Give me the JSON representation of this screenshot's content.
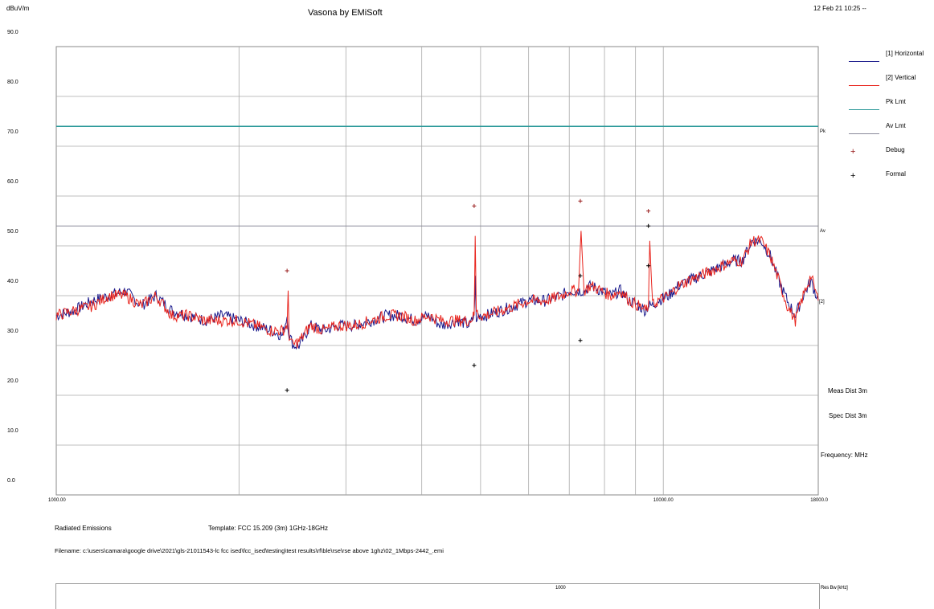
{
  "header": {
    "y_unit": "dBuV/m",
    "app_title": "Vasona by EMiSoft",
    "datetime": "12 Feb 21 10:25 --"
  },
  "chart_data": {
    "type": "line",
    "x_scale": "log",
    "xlim": [
      1000,
      18000
    ],
    "ylim": [
      0,
      90
    ],
    "y_ticks": [
      "90.0",
      "80.0",
      "70.0",
      "60.0",
      "50.0",
      "40.0",
      "30.0",
      "20.0",
      "10.0",
      "0.0"
    ],
    "x_tick_labels": [
      "1000.00",
      "10000.00",
      "18000.0"
    ],
    "grid": true,
    "legend_placement": "right",
    "limits": [
      {
        "name": "Pk Lmt",
        "value": 74,
        "tag": "Pk",
        "color": "#2e9a9a"
      },
      {
        "name": "Av Lmt",
        "value": 54,
        "tag": "Av",
        "color": "#8a8a9a"
      }
    ],
    "series": [
      {
        "name": "[1] Horizontal",
        "color": "#1a1a8c",
        "x": [
          1000,
          1070,
          1150,
          1220,
          1300,
          1380,
          1460,
          1550,
          1650,
          1760,
          1880,
          2000,
          2130,
          2260,
          2360,
          2400,
          2420,
          2460,
          2520,
          2620,
          2760,
          2920,
          3100,
          3300,
          3500,
          3700,
          3900,
          4100,
          4300,
          4600,
          4800,
          4880,
          4900,
          4920,
          4960,
          5100,
          5400,
          5700,
          6000,
          6400,
          6800,
          7000,
          7250,
          7320,
          7400,
          7600,
          7900,
          8200,
          8500,
          8800,
          9100,
          9350,
          9450,
          9500,
          9600,
          9800,
          10200,
          10600,
          11000,
          11500,
          12000,
          12500,
          13000,
          13500,
          14000,
          14500,
          15000,
          15500,
          16000,
          16500,
          17000,
          17500,
          18000
        ],
        "y": [
          36,
          37,
          39,
          40,
          41,
          38,
          40,
          37,
          36,
          35,
          36,
          35,
          34,
          33,
          32,
          36,
          32,
          30,
          30,
          34,
          33,
          34,
          34,
          35,
          36,
          36,
          35,
          36,
          34,
          35,
          34,
          36,
          44,
          34,
          36,
          36,
          37,
          38,
          39,
          39,
          40,
          41,
          41,
          41,
          41,
          42,
          41,
          40,
          41,
          39,
          38,
          37,
          38,
          38,
          38,
          39,
          40,
          42,
          43,
          44,
          45,
          46,
          47,
          47,
          51,
          51,
          48,
          43,
          39,
          36,
          40,
          43,
          39
        ]
      },
      {
        "name": "[2] Vertical",
        "color": "#e8231c",
        "x": [
          1000,
          1070,
          1150,
          1220,
          1300,
          1380,
          1460,
          1550,
          1650,
          1760,
          1880,
          2000,
          2130,
          2260,
          2360,
          2400,
          2410,
          2420,
          2450,
          2520,
          2620,
          2760,
          2920,
          3100,
          3300,
          3500,
          3700,
          3900,
          4100,
          4300,
          4600,
          4800,
          4880,
          4900,
          4920,
          4960,
          5100,
          5400,
          5700,
          6000,
          6400,
          6800,
          7000,
          7250,
          7320,
          7400,
          7600,
          7900,
          8200,
          8500,
          8800,
          9100,
          9350,
          9450,
          9500,
          9600,
          9800,
          10200,
          10600,
          11000,
          11500,
          12000,
          12500,
          13000,
          13500,
          14000,
          14500,
          15000,
          15500,
          16000,
          16500,
          17000,
          17500,
          18000
        ],
        "y": [
          36,
          37,
          38,
          40,
          40,
          38,
          40,
          36,
          36,
          35,
          35,
          35,
          34,
          33,
          33,
          34,
          40,
          32,
          30,
          31,
          34,
          33,
          34,
          34,
          35,
          36,
          36,
          35,
          36,
          35,
          35,
          35,
          36,
          52,
          37,
          36,
          36,
          37,
          38,
          39,
          39,
          40,
          41,
          41,
          53,
          41,
          42,
          41,
          40,
          41,
          39,
          38,
          37,
          38,
          51,
          38,
          39,
          40,
          42,
          43,
          44,
          45,
          46,
          47,
          47,
          51,
          51,
          48,
          43,
          38,
          35,
          40,
          44,
          39
        ]
      },
      {
        "name": "Debug",
        "type": "scatter",
        "marker": "+",
        "color": "#9a1f1f",
        "x": [
          2400,
          4880,
          7300,
          9450
        ],
        "y": [
          45,
          58,
          59,
          57
        ]
      },
      {
        "name": "Formal",
        "type": "scatter",
        "marker": "+",
        "color": "#000000",
        "x": [
          2400,
          4880,
          7300,
          7300,
          9450,
          9450
        ],
        "y": [
          21,
          26,
          31,
          44,
          54,
          46
        ]
      }
    ]
  },
  "legend": {
    "items": [
      {
        "label": "[1] Horizontal",
        "kind": "line",
        "color": "#1a1a8c"
      },
      {
        "label": "[2] Vertical",
        "kind": "line",
        "color": "#e8231c"
      },
      {
        "label": "Pk Lmt",
        "kind": "line",
        "color": "#2e9a9a"
      },
      {
        "label": "Av Lmt",
        "kind": "line",
        "color": "#8a8a9a"
      },
      {
        "label": "Debug",
        "kind": "marker",
        "color": "#9a1f1f"
      },
      {
        "label": "Formal",
        "kind": "marker",
        "color": "#000000"
      }
    ]
  },
  "right_info": {
    "meas_dist": "Meas Dist 3m",
    "spec_dist": "Spec Dist 3m",
    "frequency": "Frequency: MHz",
    "end_marker": "[2]"
  },
  "footer": {
    "test_type": "Radiated Emissions",
    "template": "Template: FCC 15.209 (3m) 1GHz-18GHz",
    "filename": "Filename: c:\\users\\camara\\google drive\\2021\\gls-21011543-lc fcc ised\\fcc_ised\\testing\\test results\\rf\\ble\\rse\\rse above 1ghz\\02_1Mbps-2442_.emi"
  },
  "rbw_panel": {
    "center_label": "1000",
    "right_label": "Res Bw [kHz]"
  }
}
